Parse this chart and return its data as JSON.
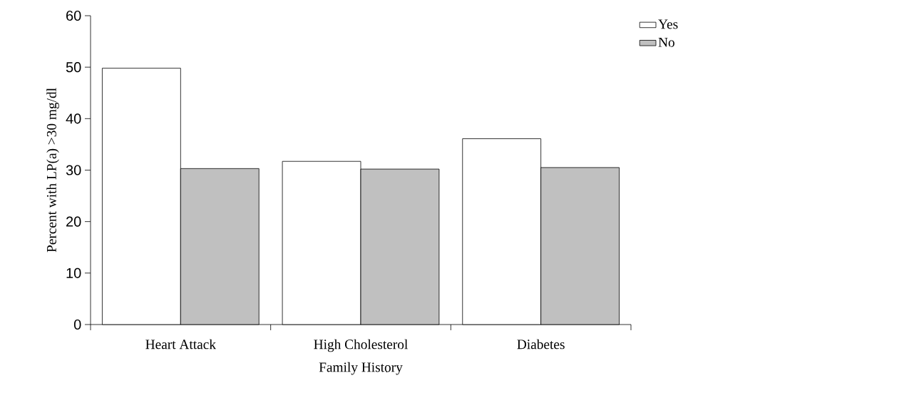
{
  "chart_data": {
    "type": "bar",
    "xlabel": "Family History",
    "ylabel": "Percent with LP(a) >30 mg/dl",
    "categories": [
      "Heart Attack",
      "High Cholesterol",
      "Diabetes"
    ],
    "series": [
      {
        "name": "Yes",
        "color": "#ffffff",
        "values": [
          49.8,
          31.7,
          36.1
        ]
      },
      {
        "name": "No",
        "color": "#c0c0c0",
        "values": [
          30.3,
          30.2,
          30.5
        ]
      }
    ],
    "ylim": [
      0,
      60
    ],
    "yticks": [
      0,
      10,
      20,
      30,
      40,
      50,
      60
    ],
    "grid": false,
    "legend": "top right"
  }
}
